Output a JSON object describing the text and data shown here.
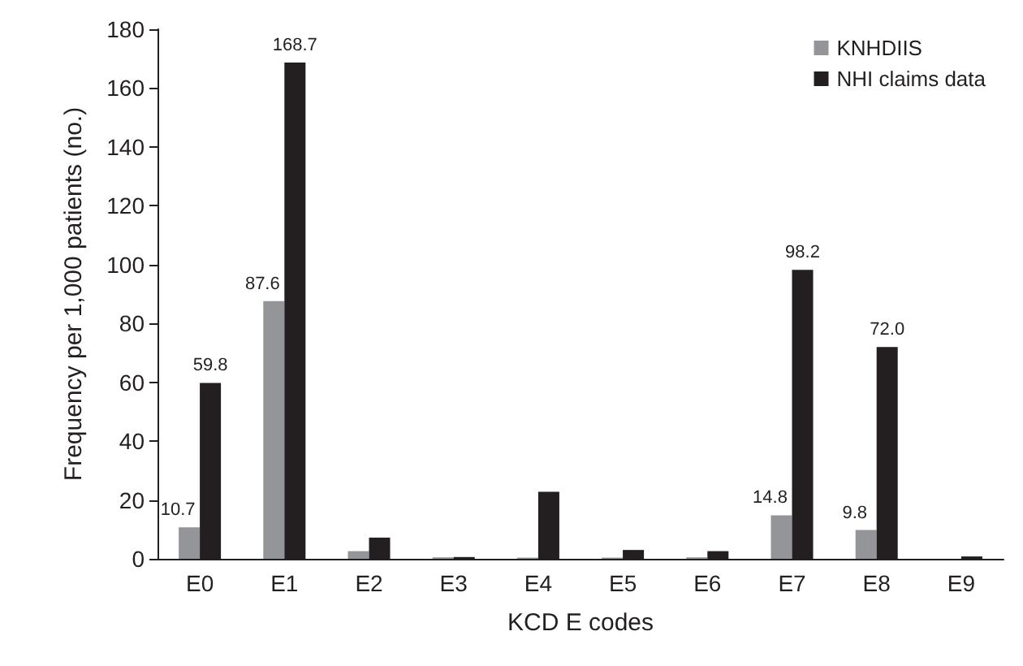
{
  "chart_data": {
    "type": "bar",
    "xlabel": "KCD E codes",
    "ylabel": "Frequency per 1,000 patients (no.)",
    "categories": [
      "E0",
      "E1",
      "E2",
      "E3",
      "E4",
      "E5",
      "E6",
      "E7",
      "E8",
      "E9"
    ],
    "series": [
      {
        "name": "KNHDIIS",
        "color": "#939598",
        "values": [
          10.7,
          87.6,
          2.6,
          0.5,
          0.4,
          0.4,
          0.5,
          14.8,
          9.8,
          0
        ],
        "value_labels": [
          "10.7",
          "87.6",
          null,
          null,
          null,
          null,
          null,
          "14.8",
          "9.8",
          null
        ]
      },
      {
        "name": "NHI claims data",
        "color": "#231f20",
        "values": [
          59.8,
          168.7,
          7.2,
          0.6,
          22.8,
          3.0,
          2.6,
          98.2,
          72.0,
          0.8
        ],
        "value_labels": [
          "59.8",
          "168.7",
          null,
          null,
          null,
          null,
          null,
          "98.2",
          "72.0",
          null
        ]
      }
    ],
    "ylim": [
      0,
      180
    ],
    "yticks": [
      0,
      20,
      40,
      60,
      80,
      100,
      120,
      140,
      160,
      180
    ],
    "grid": false,
    "legend": "top right"
  }
}
